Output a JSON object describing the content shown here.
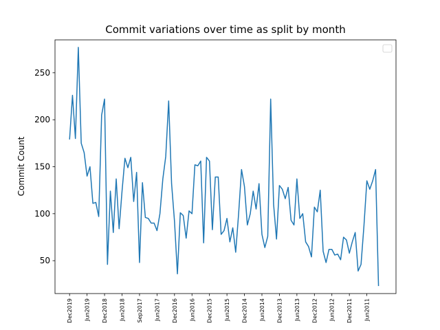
{
  "chart_data": {
    "type": "line",
    "title": "Commit variations over time as split by month",
    "xlabel": "",
    "ylabel": "Commit Count",
    "ylim": [
      15,
      285
    ],
    "yticks": [
      50,
      100,
      150,
      200,
      250
    ],
    "grid": false,
    "legend": {
      "placement": "upper right",
      "entries": []
    },
    "line_color": "#1f77b4",
    "x_tick_labels": [
      {
        "label": "Dec2019",
        "index": 0
      },
      {
        "label": "Jun2019",
        "index": 6
      },
      {
        "label": "Dec2018",
        "index": 12
      },
      {
        "label": "Jun2018",
        "index": 18
      },
      {
        "label": "Sep2017",
        "index": 24
      },
      {
        "label": "Jun2017",
        "index": 30
      },
      {
        "label": "Dec2016",
        "index": 36
      },
      {
        "label": "Jun2016",
        "index": 42
      },
      {
        "label": "Dec2015",
        "index": 48
      },
      {
        "label": "Jun2015",
        "index": 54
      },
      {
        "label": "Dec2014",
        "index": 60
      },
      {
        "label": "Jun2014",
        "index": 66
      },
      {
        "label": "Dec2013",
        "index": 72
      },
      {
        "label": "Jun2013",
        "index": 78
      },
      {
        "label": "Dec2012",
        "index": 84
      },
      {
        "label": "Jun2012",
        "index": 90
      },
      {
        "label": "Dec2011",
        "index": 96
      },
      {
        "label": "Jun2011",
        "index": 102
      }
    ],
    "series": [
      {
        "values": [
          179,
          226,
          180,
          277,
          175,
          165,
          140,
          150,
          111,
          112,
          97,
          205,
          222,
          46,
          124,
          80,
          137,
          84,
          124,
          159,
          149,
          160,
          113,
          144,
          48,
          133,
          96,
          95,
          90,
          90,
          82,
          100,
          137,
          161,
          220,
          132,
          92,
          36,
          101,
          98,
          74,
          103,
          100,
          152,
          151,
          156,
          69,
          160,
          156,
          83,
          139,
          139,
          78,
          82,
          95,
          70,
          85,
          59,
          100,
          147,
          129,
          88,
          100,
          124,
          105,
          132,
          78,
          64,
          76,
          222,
          110,
          73,
          130,
          126,
          116,
          128,
          93,
          88,
          137,
          95,
          100,
          70,
          65,
          54,
          107,
          102,
          125,
          60,
          48,
          62,
          62,
          56,
          57,
          51,
          75,
          72,
          58,
          70,
          80,
          39,
          46,
          87,
          135,
          126,
          135,
          147,
          23
        ]
      }
    ]
  }
}
